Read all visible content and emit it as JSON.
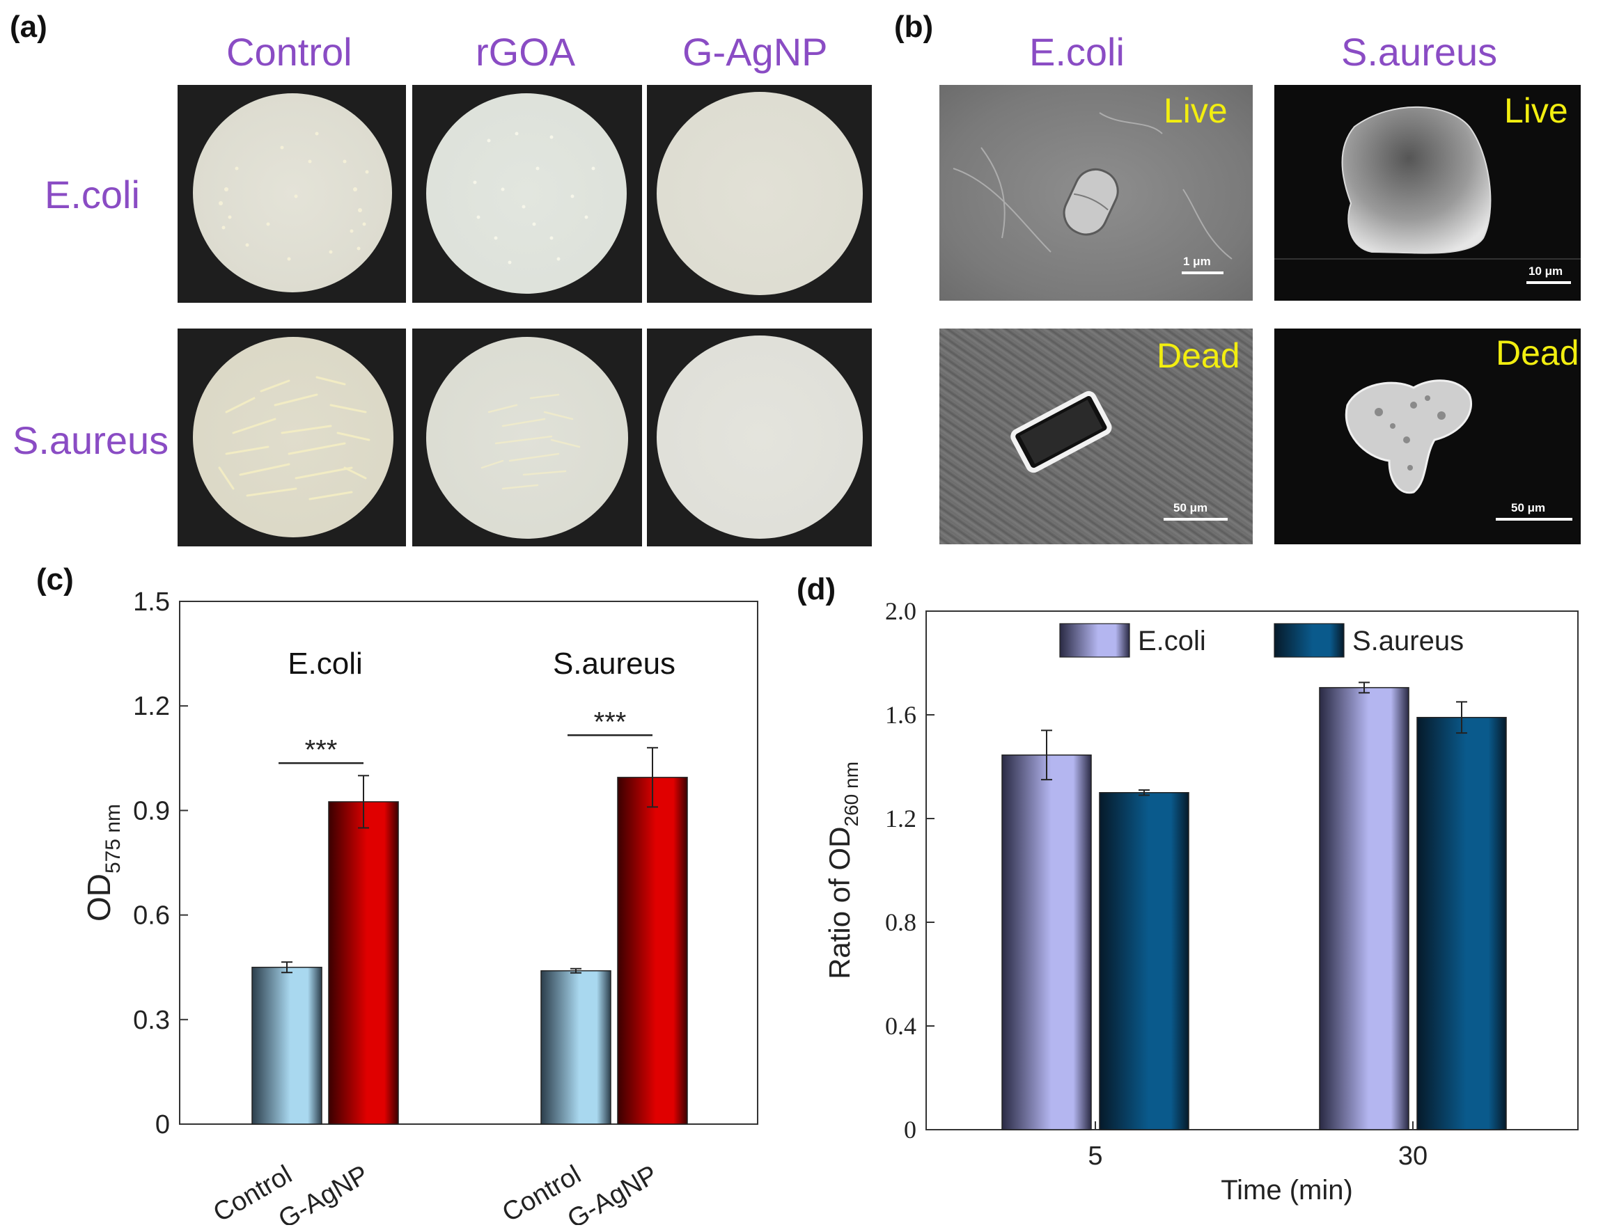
{
  "panel_a": {
    "label": "(a)",
    "columns": [
      "Control",
      "rGOA",
      "G-AgNP"
    ],
    "rows": [
      "E.coli",
      "S.aureus"
    ]
  },
  "panel_b": {
    "label": "(b)",
    "columns": [
      "E.coli",
      "S.aureus"
    ],
    "tags": [
      "Live",
      "Live",
      "Dead",
      "Dead"
    ],
    "scales": [
      "1 μm",
      "10 μm",
      "50 μm",
      "50 μm"
    ],
    "label_color": "#f2ee10"
  },
  "colors": {
    "purple_label": "#8a4cc4",
    "control_bar": "#a9d8ef",
    "agnp_bar": "#e00000",
    "ecoli_bar": "#b4b6f0",
    "saureus_bar": "#0a5a8c"
  },
  "chart_data": [
    {
      "panel": "(c)",
      "type": "bar",
      "ylabel": "OD",
      "ylabel_sub": "575 nm",
      "ylim": [
        0,
        1.5
      ],
      "yticks": [
        "0",
        "0.3",
        "0.6",
        "0.9",
        "1.2",
        "1.5"
      ],
      "groups": [
        {
          "name": "E.coli",
          "significance": "***",
          "bars": [
            {
              "category": "Control",
              "value": 0.45,
              "error": 0.015
            },
            {
              "category": "G-AgNP",
              "value": 0.925,
              "error": 0.075
            }
          ]
        },
        {
          "name": "S.aureus",
          "significance": "***",
          "bars": [
            {
              "category": "Control",
              "value": 0.44,
              "error": 0.006
            },
            {
              "category": "G-AgNP",
              "value": 0.995,
              "error": 0.085
            }
          ]
        }
      ],
      "legend": "none",
      "grid": false
    },
    {
      "panel": "(d)",
      "type": "bar",
      "ylabel": "Ratio of OD",
      "ylabel_sub": "260 nm",
      "xlabel": "Time (min)",
      "ylim": [
        0,
        2.0
      ],
      "yticks": [
        "0",
        "0.4",
        "0.8",
        "1.2",
        "1.6",
        "2.0"
      ],
      "categories": [
        "5",
        "30"
      ],
      "series": [
        {
          "name": "E.coli",
          "values": [
            1.445,
            1.705
          ],
          "errors": [
            0.095,
            0.02
          ]
        },
        {
          "name": "S.aureus",
          "values": [
            1.3,
            1.59
          ],
          "errors": [
            0.01,
            0.06
          ]
        }
      ],
      "legend": "top-center",
      "grid": false
    }
  ]
}
